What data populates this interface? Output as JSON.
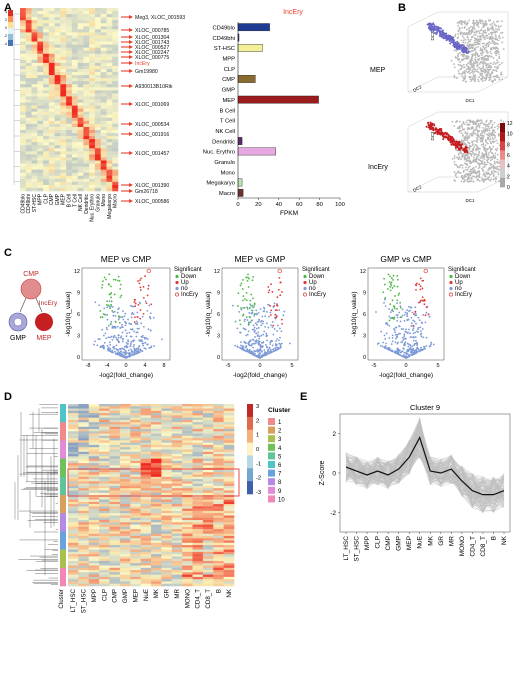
{
  "panels": {
    "A": "A",
    "B": "B",
    "C": "C",
    "D": "D",
    "E": "E"
  },
  "panelA": {
    "heat_scale": [
      "4",
      "2",
      "0",
      "-2",
      "-4"
    ],
    "gene_labels": [
      "Meg3, XLOC_001593",
      "XLOC_000785",
      "XLOC_001304",
      "XLOC_001743",
      "XLOC_000527",
      "XLOC_002247",
      "XLOC_000775",
      "IncEry",
      "Gm19980",
      "A930013B10Rik",
      "XLOC_001069",
      "XLOC_000534",
      "XLOC_001916",
      "XLOC_001457",
      "XLOC_001390",
      "Gm26718",
      "XLOC_000586"
    ],
    "heat_columns": [
      "CD49blo",
      "CD49bhi",
      "ST-HSC",
      "MPP",
      "CLP",
      "CMP",
      "GMP",
      "MEP",
      "B Cell",
      "T Cell",
      "NK Cell",
      "Dendritic",
      "Nuc. Erythro",
      "Granulo",
      "Mono",
      "Megakaryo",
      "Macro"
    ],
    "accent": "#e8402a"
  },
  "chart_data": [
    {
      "type": "bar",
      "title": "IncEry",
      "xlabel": "FPKM",
      "categories": [
        "CD49blo",
        "CD49bhi",
        "ST-HSC",
        "MPP",
        "CLP",
        "CMP",
        "GMP",
        "MEP",
        "B Cell",
        "T Cell",
        "NK Cell",
        "Dendritic",
        "Nuc. Erythro",
        "Granulo",
        "Mono",
        "Megakaryo",
        "Macro"
      ],
      "values": [
        31,
        1,
        24,
        0,
        0,
        17,
        0,
        79,
        0,
        0,
        0,
        4,
        37,
        0,
        0,
        4,
        5
      ],
      "colors": [
        "#1f3a93",
        "#1f3a93",
        "#f5ef9a",
        "#cccccc",
        "#cccccc",
        "#8a6a2e",
        "#cccccc",
        "#9b1c1c",
        "#cccccc",
        "#cccccc",
        "#cccccc",
        "#5c2a6a",
        "#e6a8e0",
        "#cccccc",
        "#cccccc",
        "#b9e3b0",
        "#6e2f2f"
      ],
      "xlim": [
        0,
        100
      ],
      "xticks": [
        "0",
        "20",
        "40",
        "60",
        "80",
        "100"
      ]
    },
    {
      "type": "scatter",
      "title": "MEP vs CMP",
      "xlabel": "-log2(fold_change)",
      "ylabel": "-log10(q_value)",
      "xticks": [
        "-8",
        "-4",
        "0",
        "4",
        "8"
      ],
      "yticks": [
        "0",
        "3",
        "6",
        "9",
        "12"
      ],
      "legend_title": "Significant",
      "legend": [
        "Down",
        "Up",
        "no",
        "IncEry"
      ]
    },
    {
      "type": "scatter",
      "title": "MEP vs GMP",
      "xlabel": "-log2(fold_change)",
      "ylabel": "-log10(q_value)",
      "xticks": [
        "-5",
        "0",
        "5"
      ],
      "yticks": [
        "0",
        "3",
        "6",
        "9",
        "12"
      ],
      "legend_title": "Significant",
      "legend": [
        "Down",
        "Up",
        "no",
        "IncEry"
      ]
    },
    {
      "type": "scatter",
      "title": "GMP vs CMP",
      "xlabel": "-log2(fold_change)",
      "ylabel": "-log10(q_value)",
      "xticks": [
        "-5",
        "0",
        "5"
      ],
      "yticks": [
        "0",
        "3",
        "6",
        "9",
        "12"
      ],
      "legend_title": "Significant",
      "legend": [
        "Down",
        "Up",
        "no",
        "IncEry"
      ]
    },
    {
      "type": "line",
      "title": "Cluster 9",
      "ylabel": "Z-Score",
      "categories": [
        "LT_HSC",
        "ST_HSC",
        "MPP",
        "CLP",
        "CMP",
        "GMP",
        "MEP",
        "NuE",
        "MK",
        "GR",
        "MR",
        "MONO",
        "CD4_T",
        "CD8_T",
        "B",
        "NK"
      ],
      "values": [
        0.3,
        0.1,
        -0.1,
        0.1,
        -0.1,
        0.2,
        0.8,
        1.8,
        0.1,
        0.0,
        0.2,
        -0.4,
        -0.9,
        -1.1,
        -1.1,
        -0.9
      ],
      "ylim": [
        -3,
        3
      ],
      "yticks": [
        "-2",
        "0",
        "2"
      ]
    }
  ],
  "panelB": {
    "row_labels": [
      "MEP",
      "IncEry"
    ],
    "axis_labels": [
      "DC1",
      "DC2",
      "DC3"
    ],
    "colorbar_ticks": [
      "12",
      "10",
      "8",
      "6",
      "4",
      "2",
      "0"
    ]
  },
  "panelC": {
    "lineage": {
      "top": "CMP",
      "left": "GMP",
      "right": "MEP",
      "label": "IncEry"
    }
  },
  "panelD": {
    "columns": [
      "LT_HSC",
      "ST_HSC",
      "MPP",
      "CLP",
      "CMP",
      "GMP",
      "MEP",
      "NuE",
      "MK",
      "GR",
      "MR",
      "MONO",
      "CD4_T",
      "CD8_T",
      "B",
      "NK"
    ],
    "cluster_label": "Cluster",
    "legend_title": "Cluster",
    "clusters": [
      "1",
      "2",
      "3",
      "4",
      "5",
      "6",
      "7",
      "8",
      "9",
      "10"
    ],
    "cluster_colors": [
      "#f08a8a",
      "#d9a05b",
      "#a8c04d",
      "#6fc15a",
      "#5ec59a",
      "#4fc4c7",
      "#6aa2e0",
      "#b48ae6",
      "#e28bd6",
      "#f287b6"
    ],
    "scale_ticks": [
      "3",
      "2",
      "1",
      "0",
      "-1",
      "-2",
      "-3"
    ]
  }
}
